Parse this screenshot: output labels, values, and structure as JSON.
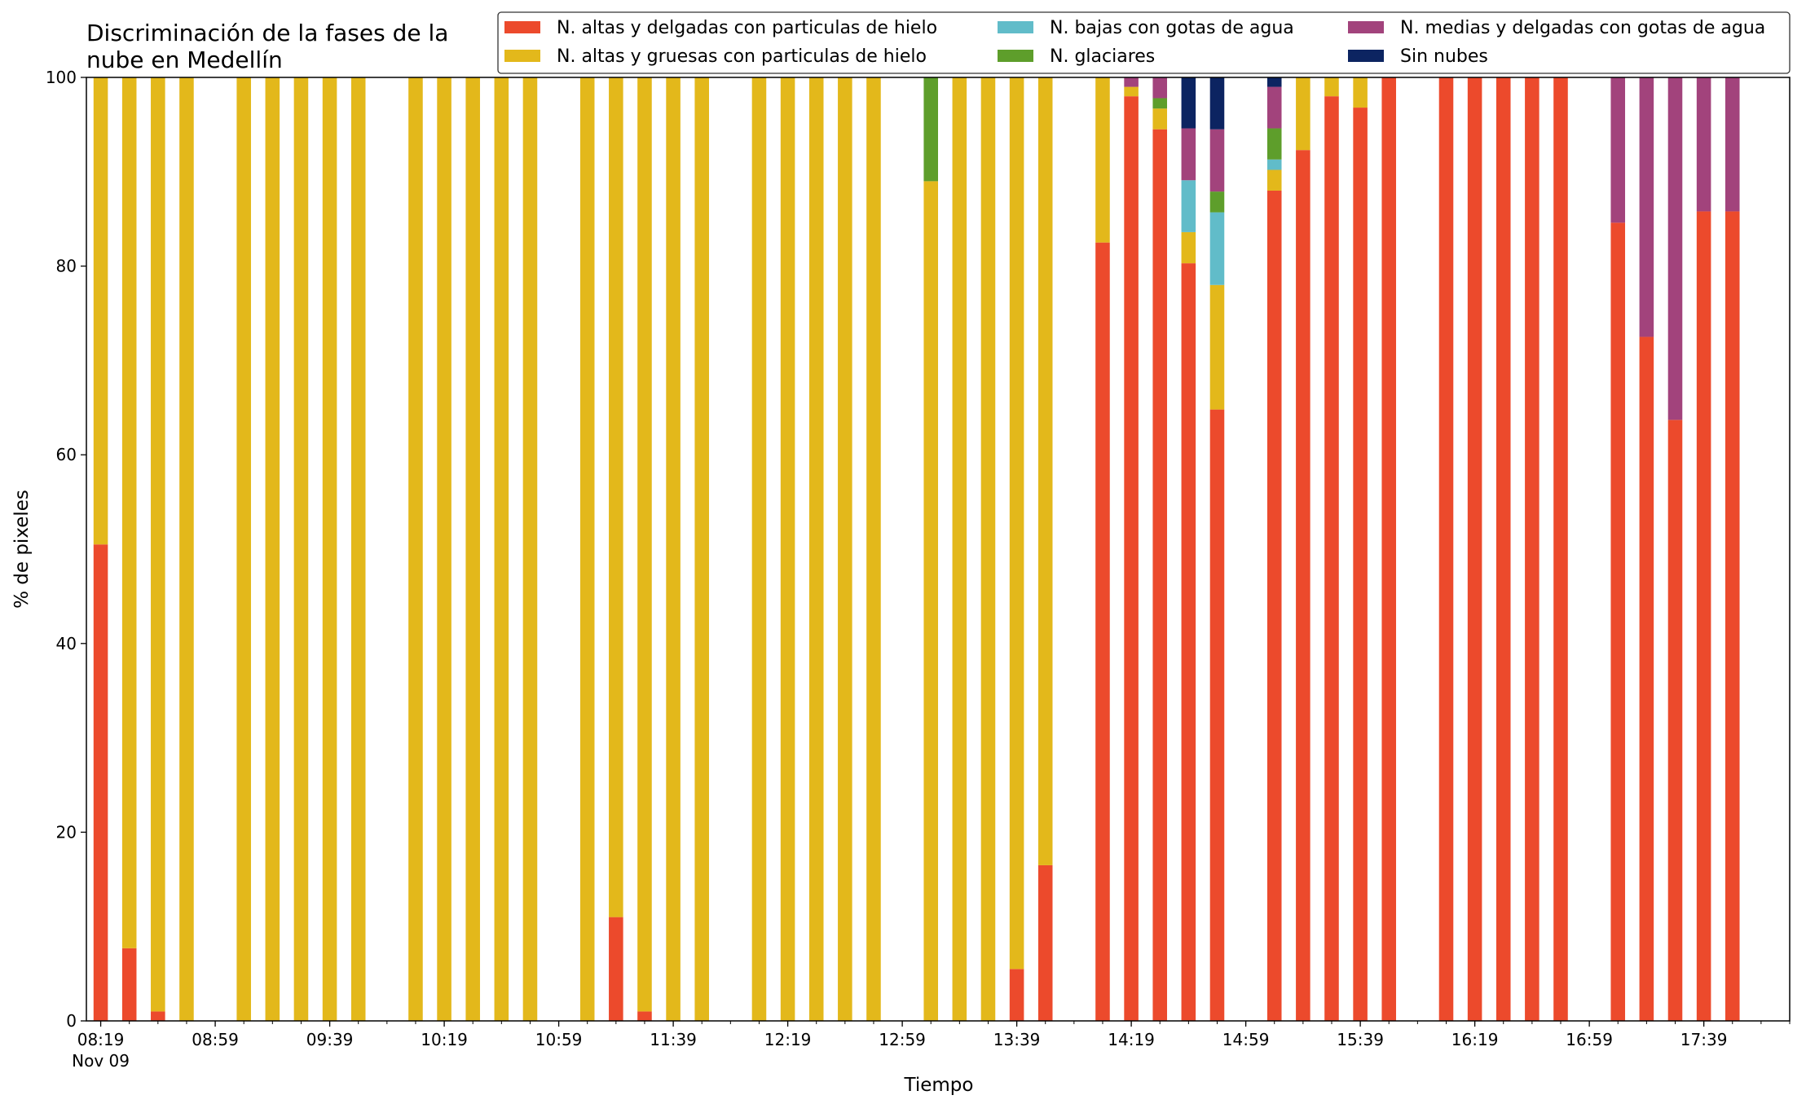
{
  "chart_data": {
    "type": "bar",
    "stacked": true,
    "title": "Discriminación de la fases de la\nnube en Medellín",
    "xlabel": "Tiempo",
    "ylabel": "% de pixeles",
    "ylim": [
      0,
      100
    ],
    "yticks": [
      0,
      20,
      40,
      60,
      80,
      100
    ],
    "x_range": [
      "08:14",
      "18:09"
    ],
    "x_tick_labels": [
      {
        "time": "08:19",
        "label": "08:19",
        "sublabel": "Nov 09"
      },
      {
        "time": "08:59",
        "label": "08:59"
      },
      {
        "time": "09:39",
        "label": "09:39"
      },
      {
        "time": "10:19",
        "label": "10:19"
      },
      {
        "time": "10:59",
        "label": "10:59"
      },
      {
        "time": "11:39",
        "label": "11:39"
      },
      {
        "time": "12:19",
        "label": "12:19"
      },
      {
        "time": "12:59",
        "label": "12:59"
      },
      {
        "time": "13:39",
        "label": "13:39"
      },
      {
        "time": "14:19",
        "label": "14:19"
      },
      {
        "time": "14:59",
        "label": "14:59"
      },
      {
        "time": "15:39",
        "label": "15:39"
      },
      {
        "time": "16:19",
        "label": "16:19"
      },
      {
        "time": "16:59",
        "label": "16:59"
      },
      {
        "time": "17:39",
        "label": "17:39"
      }
    ],
    "x_minor_tick_step_minutes": 10,
    "legend_position": "top-right",
    "legend_columns": 3,
    "categories": [
      "08:19",
      "08:29",
      "08:39",
      "08:49",
      "09:09",
      "09:19",
      "09:29",
      "09:39",
      "09:49",
      "10:09",
      "10:19",
      "10:29",
      "10:39",
      "10:49",
      "11:09",
      "11:19",
      "11:29",
      "11:39",
      "11:49",
      "12:09",
      "12:19",
      "12:29",
      "12:39",
      "12:49",
      "13:09",
      "13:19",
      "13:29",
      "13:39",
      "13:49",
      "14:09",
      "14:19",
      "14:29",
      "14:39",
      "14:49",
      "15:09",
      "15:19",
      "15:29",
      "15:39",
      "15:49",
      "16:09",
      "16:19",
      "16:29",
      "16:39",
      "16:49",
      "17:09",
      "17:19",
      "17:29",
      "17:39",
      "17:49"
    ],
    "series": [
      {
        "name": "N. altas y delgadas con particulas de hielo",
        "color": "#ec4a2c",
        "values": [
          50.5,
          7.7,
          1.0,
          0,
          0,
          0,
          0,
          0,
          0,
          0,
          0,
          0,
          0,
          0,
          0,
          11.0,
          1.0,
          0,
          0,
          0,
          0,
          0,
          0,
          0,
          0,
          0,
          0,
          5.5,
          16.5,
          82.5,
          98.0,
          94.5,
          80.3,
          64.8,
          88.0,
          92.3,
          98.0,
          96.8,
          100,
          100,
          100,
          100,
          100,
          100,
          84.6,
          72.5,
          63.7,
          85.8,
          85.8
        ]
      },
      {
        "name": "N. altas y gruesas con particulas de hielo",
        "color": "#e3b81b",
        "values": [
          49.5,
          92.3,
          99.0,
          100,
          100,
          100,
          100,
          100,
          100,
          100,
          100,
          100,
          100,
          100,
          100,
          89.0,
          99.0,
          100,
          100,
          100,
          100,
          100,
          100,
          100,
          89.0,
          100,
          100,
          94.5,
          83.5,
          17.5,
          1.0,
          2.2,
          3.3,
          13.2,
          2.2,
          7.7,
          2.0,
          3.2,
          0,
          0,
          0,
          0,
          0,
          0,
          0,
          0,
          0,
          0,
          0
        ]
      },
      {
        "name": "N. bajas con gotas de agua",
        "color": "#61bcc9",
        "values": [
          0,
          0,
          0,
          0,
          0,
          0,
          0,
          0,
          0,
          0,
          0,
          0,
          0,
          0,
          0,
          0,
          0,
          0,
          0,
          0,
          0,
          0,
          0,
          0,
          0,
          0,
          0,
          0,
          0,
          0,
          0,
          0,
          5.5,
          7.7,
          1.1,
          0,
          0,
          0,
          0,
          0,
          0,
          0,
          0,
          0,
          0,
          0,
          0,
          0,
          0
        ]
      },
      {
        "name": "N. glaciares",
        "color": "#5e9e2b",
        "values": [
          0,
          0,
          0,
          0,
          0,
          0,
          0,
          0,
          0,
          0,
          0,
          0,
          0,
          0,
          0,
          0,
          0,
          0,
          0,
          0,
          0,
          0,
          0,
          0,
          11.0,
          0,
          0,
          0,
          0,
          0,
          0,
          1.1,
          0,
          2.2,
          3.3,
          0,
          0,
          0,
          0,
          0,
          0,
          0,
          0,
          0,
          0,
          0,
          0,
          0,
          0
        ]
      },
      {
        "name": "N. medias y delgadas con gotas de agua",
        "color": "#a2437c",
        "values": [
          0,
          0,
          0,
          0,
          0,
          0,
          0,
          0,
          0,
          0,
          0,
          0,
          0,
          0,
          0,
          0,
          0,
          0,
          0,
          0,
          0,
          0,
          0,
          0,
          0,
          0,
          0,
          0,
          0,
          0,
          1.0,
          2.2,
          5.5,
          6.6,
          4.4,
          0,
          0,
          0,
          0,
          0,
          0,
          0,
          0,
          0,
          15.4,
          27.5,
          36.3,
          14.2,
          14.2
        ]
      },
      {
        "name": "Sin nubes",
        "color": "#0c2461",
        "values": [
          0,
          0,
          0,
          0,
          0,
          0,
          0,
          0,
          0,
          0,
          0,
          0,
          0,
          0,
          0,
          0,
          0,
          0,
          0,
          0,
          0,
          0,
          0,
          0,
          0,
          0,
          0,
          0,
          0,
          0,
          0,
          0,
          5.4,
          5.5,
          1.0,
          0,
          0,
          0,
          0,
          0,
          0,
          0,
          0,
          0,
          0,
          0,
          0,
          0,
          0
        ]
      }
    ]
  }
}
